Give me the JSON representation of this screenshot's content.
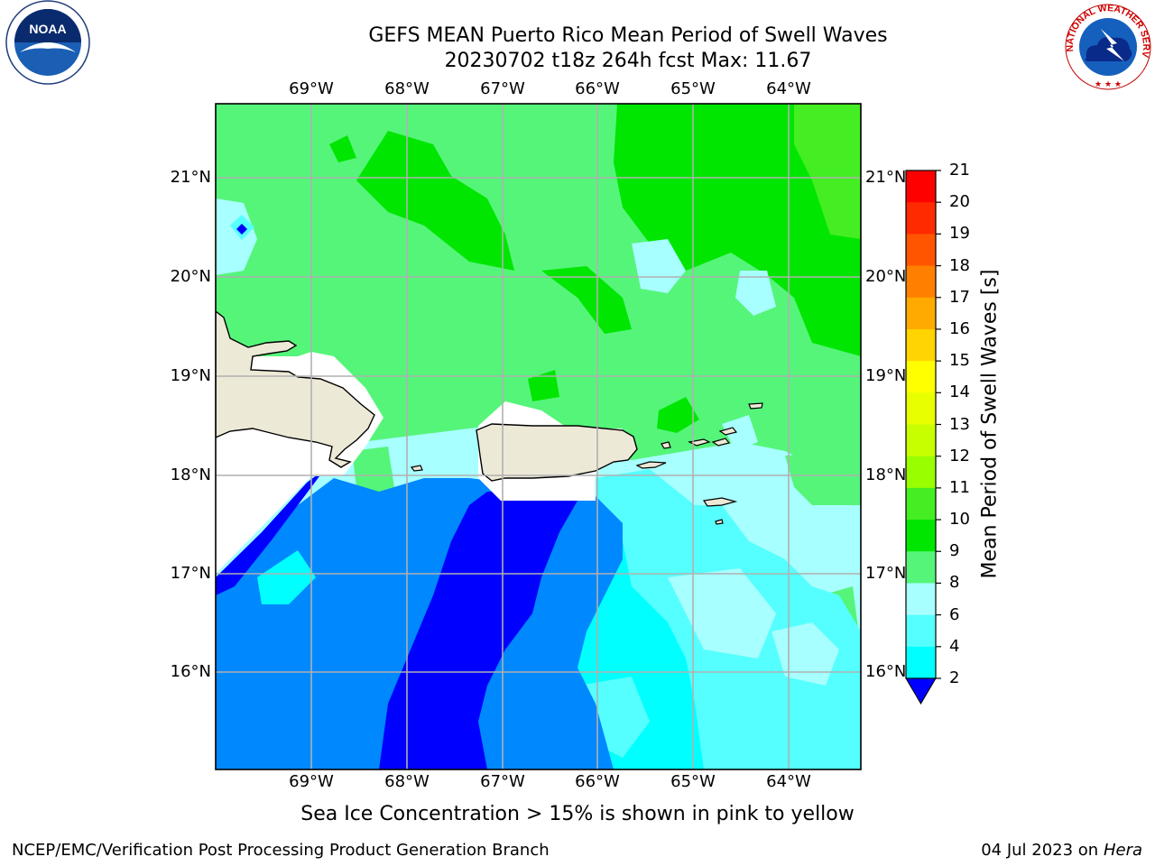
{
  "title": {
    "line1": "GEFS MEAN Puerto Rico Mean Period of Swell Waves",
    "line2": "20230702 t18z 264h fcst   Max: 11.67"
  },
  "logos": {
    "left": "NOAA",
    "right_ring_text": "NATIONAL WEATHER SERVICE"
  },
  "map": {
    "lon_labels": [
      "69°W",
      "68°W",
      "67°W",
      "66°W",
      "65°W",
      "64°W"
    ],
    "lat_labels": [
      "21°N",
      "20°N",
      "19°N",
      "18°N",
      "17°N",
      "16°N"
    ]
  },
  "colorbar": {
    "label": "Mean Period of Swell Waves [s]",
    "ticks": [
      "21",
      "20",
      "19",
      "18",
      "17",
      "16",
      "15",
      "14",
      "13",
      "12",
      "11",
      "10",
      "9",
      "8",
      "6",
      "4",
      "2"
    ],
    "colors": [
      "#ff0000",
      "#ff2a00",
      "#ff5500",
      "#ff7f00",
      "#ffaa00",
      "#ffd400",
      "#ffff00",
      "#e8ff00",
      "#c8ff00",
      "#99ff00",
      "#44ee22",
      "#00e600",
      "#55f57a",
      "#a8ffff",
      "#55ffff",
      "#00ffff",
      "#0088ff",
      "#0000ff"
    ],
    "extend": "min"
  },
  "caption": "Sea Ice Concentration > 15% is shown in pink to yellow",
  "footer": {
    "left": "NCEP/EMC/Verification Post Processing Product Generation Branch",
    "date": "04 Jul 2023 on ",
    "machine": "Hera"
  }
}
